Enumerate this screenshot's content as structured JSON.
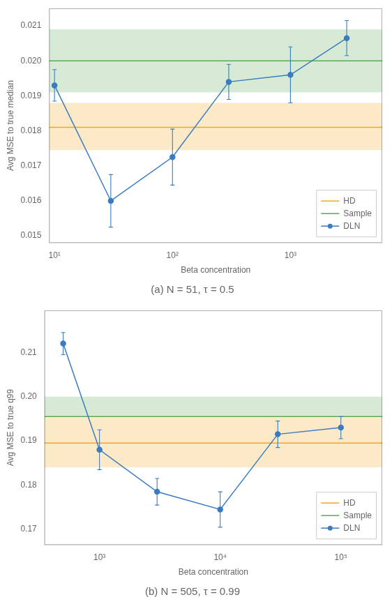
{
  "chart_data": [
    {
      "type": "line",
      "title": "(a) N = 51, τ = 0.5",
      "xlabel": "Beta concentration",
      "ylabel": "Avg MSE to true median",
      "log": "x",
      "grid": false,
      "legend": "lower right",
      "xlim": [
        9,
        6000
      ],
      "xticks": [
        {
          "value": 10,
          "label": "10¹"
        },
        {
          "value": 100,
          "label": "10²"
        },
        {
          "value": 1000,
          "label": "10³"
        }
      ],
      "ylim": [
        0.0148,
        0.0215
      ],
      "yticks": [
        0.015,
        0.016,
        0.017,
        0.018,
        0.019,
        {
          "value": 0.02,
          "label": "0.020"
        },
        0.021
      ],
      "x": [
        10,
        30,
        100,
        300,
        1000,
        3000
      ],
      "series": [
        {
          "name": "HD",
          "type": "hline",
          "color": "#f5a623",
          "value": 0.0181,
          "band": [
            0.01745,
            0.0188
          ]
        },
        {
          "name": "Sample",
          "type": "hline",
          "color": "#5aaa5a",
          "value": 0.02,
          "band": [
            0.0191,
            0.0209
          ]
        },
        {
          "name": "DLN",
          "type": "line",
          "color": "#3a7cbf",
          "marker": "circle",
          "values": [
            0.0193,
            0.016,
            0.01725,
            0.0194,
            0.0196,
            0.02065
          ],
          "error_lo": [
            0.00045,
            0.00075,
            0.0008,
            0.0005,
            0.0008,
            0.0005
          ],
          "error_hi": [
            0.00045,
            0.00075,
            0.0008,
            0.0005,
            0.0008,
            0.0005
          ]
        }
      ]
    },
    {
      "type": "line",
      "title": "(b) N = 505, τ = 0.99",
      "xlabel": "Beta concentration",
      "ylabel": "Avg MSE to true q99",
      "log": "x",
      "grid": false,
      "legend": "lower right",
      "xlim": [
        350,
        220000
      ],
      "xticks": [
        {
          "value": 1000,
          "label": "10³"
        },
        {
          "value": 10000,
          "label": "10⁴"
        },
        {
          "value": 100000,
          "label": "10⁵"
        }
      ],
      "ylim": [
        0.1665,
        0.2195
      ],
      "yticks": [
        0.17,
        0.18,
        0.19,
        {
          "value": 0.2,
          "label": "0.20"
        },
        0.21
      ],
      "x": [
        500,
        1000,
        3000,
        10000,
        30000,
        100000
      ],
      "series": [
        {
          "name": "HD",
          "type": "hline",
          "color": "#f5a623",
          "value": 0.1895,
          "band": [
            0.184,
            0.1952
          ]
        },
        {
          "name": "Sample",
          "type": "hline",
          "color": "#5aaa5a",
          "value": 0.1955,
          "band": [
            0.1953,
            0.2
          ]
        },
        {
          "name": "DLN",
          "type": "line",
          "color": "#3a7cbf",
          "marker": "circle",
          "values": [
            0.212,
            0.188,
            0.1785,
            0.1745,
            0.1915,
            0.193
          ],
          "error_lo": [
            0.0025,
            0.0045,
            0.003,
            0.004,
            0.003,
            0.0025
          ],
          "error_hi": [
            0.0025,
            0.0045,
            0.003,
            0.004,
            0.003,
            0.0025
          ]
        }
      ]
    }
  ]
}
